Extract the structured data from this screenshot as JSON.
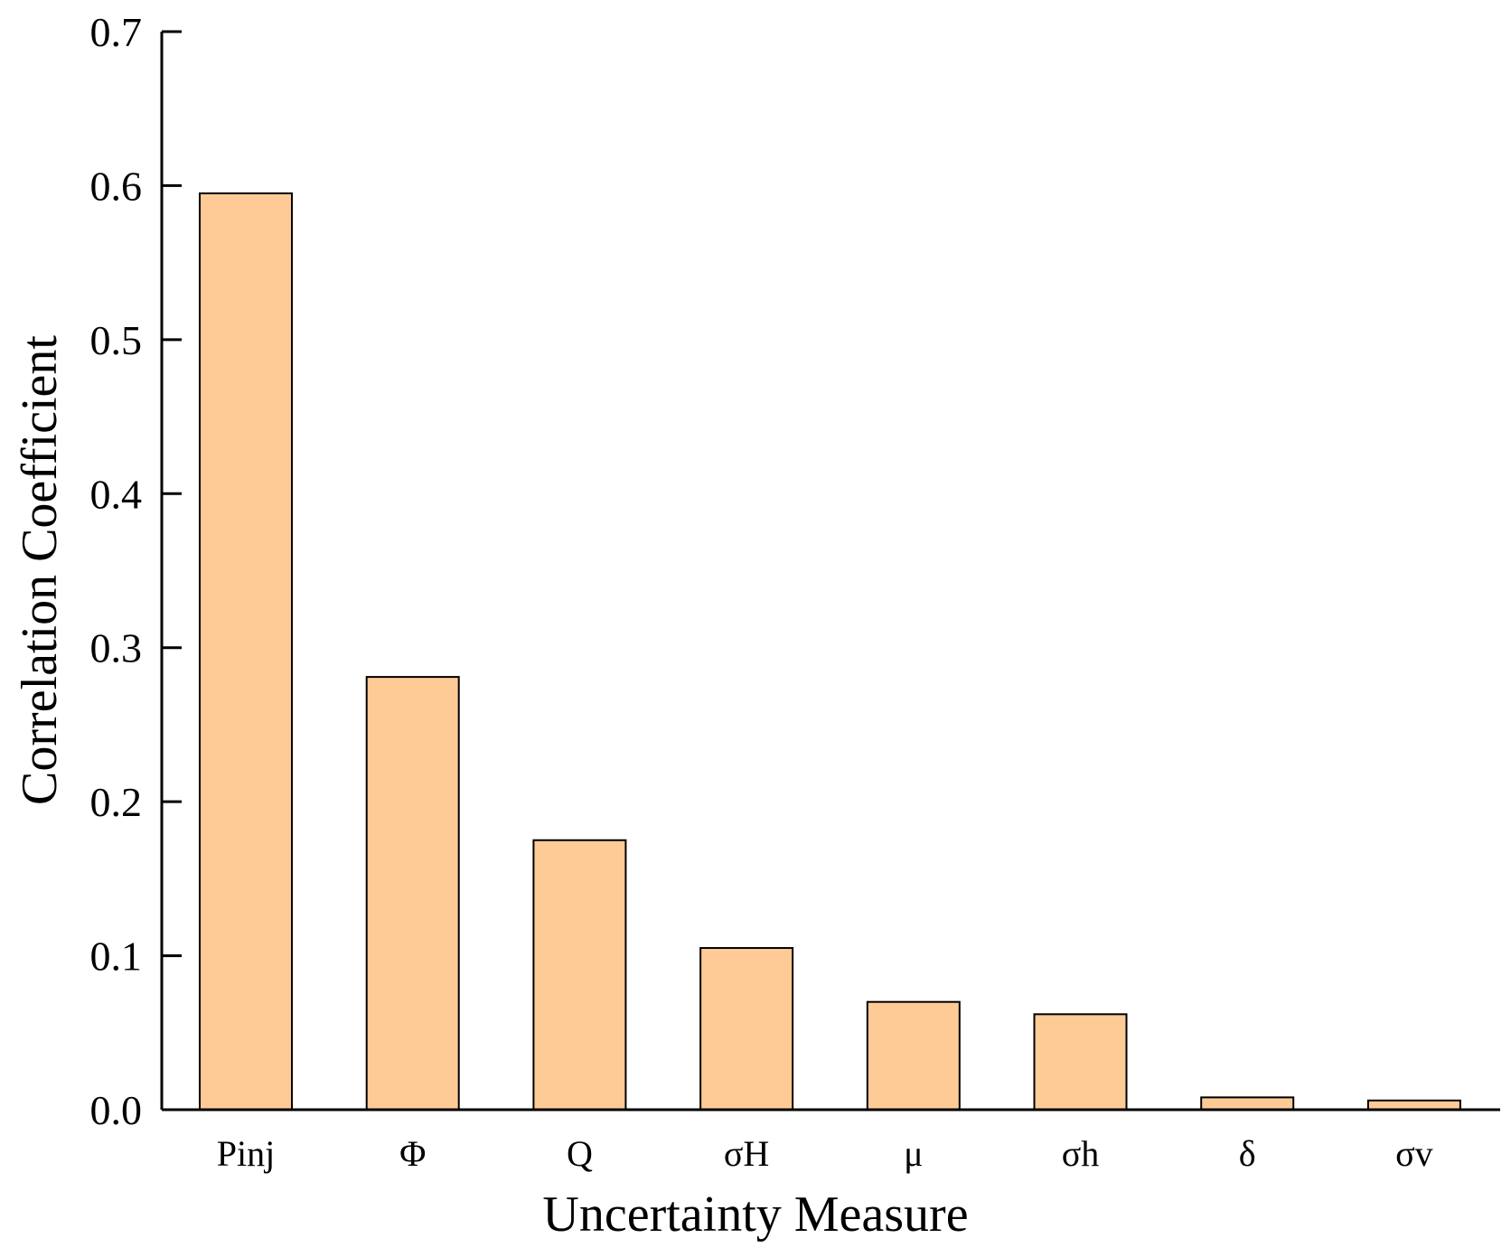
{
  "chart_data": {
    "type": "bar",
    "xlabel": "Uncertainty Measure",
    "ylabel": "Correlation Coefficient",
    "categories": [
      "Pinj",
      "Φ",
      "Q",
      "σH",
      "μ",
      "σh",
      "δ",
      "σv"
    ],
    "values": [
      0.595,
      0.281,
      0.175,
      0.105,
      0.07,
      0.062,
      0.008,
      0.006
    ],
    "ylim": [
      0,
      0.7
    ],
    "yticks": [
      "0.0",
      "0.1",
      "0.2",
      "0.3",
      "0.4",
      "0.5",
      "0.6",
      "0.7"
    ],
    "grid": false,
    "legend": "none",
    "colors": {
      "bar_fill": "#FECA96",
      "bar_stroke": "#000000",
      "axis": "#000000"
    }
  }
}
